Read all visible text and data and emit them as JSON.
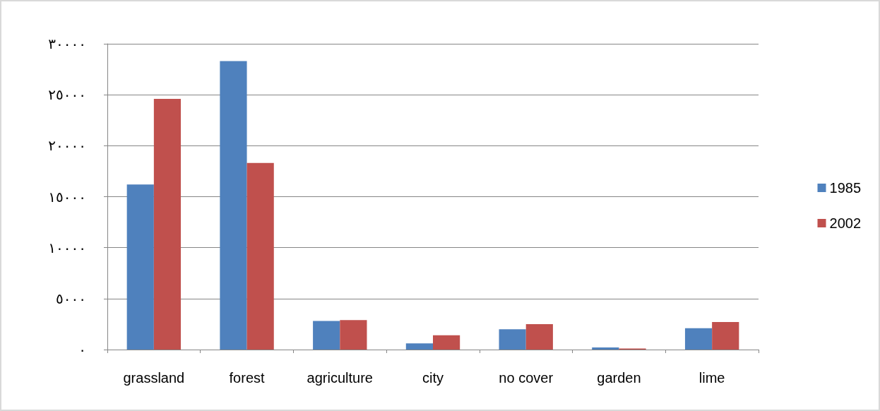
{
  "chart_data": {
    "type": "bar",
    "categories": [
      "grassland",
      "forest",
      "agriculture",
      "city",
      "no cover",
      "garden",
      "lime"
    ],
    "series": [
      {
        "name": "1985",
        "color": "#4f81bd",
        "values": [
          16200,
          28300,
          2800,
          600,
          2000,
          200,
          2100
        ]
      },
      {
        "name": "2002",
        "color": "#c0504d",
        "values": [
          24600,
          18300,
          2900,
          1400,
          2500,
          100,
          2700
        ]
      }
    ],
    "ylim": [
      0,
      30000
    ],
    "yticks": [
      {
        "value": 0,
        "label": "٠"
      },
      {
        "value": 5000,
        "label": "٥٠٠٠"
      },
      {
        "value": 10000,
        "label": "١٠٠٠٠"
      },
      {
        "value": 15000,
        "label": "١٥٠٠٠"
      },
      {
        "value": 20000,
        "label": "٢٠٠٠٠"
      },
      {
        "value": 25000,
        "label": "٢٥٠٠٠"
      },
      {
        "value": 30000,
        "label": "٣٠٠٠٠"
      }
    ],
    "grid": "y",
    "legend": "right"
  }
}
